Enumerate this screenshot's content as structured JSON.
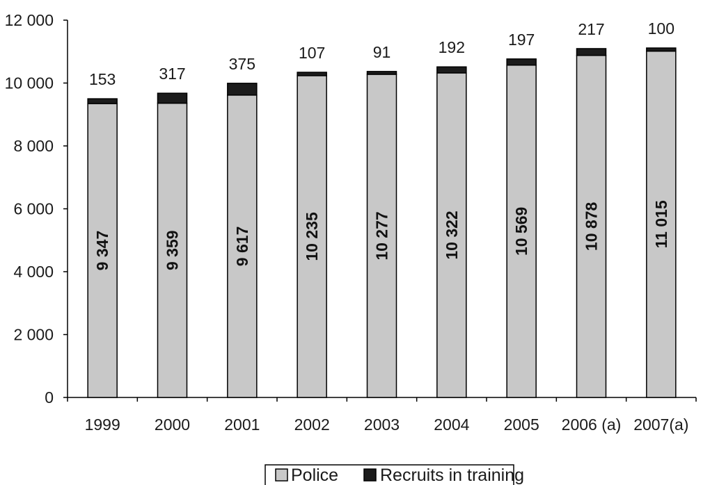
{
  "chart_data": {
    "type": "bar",
    "stacked": true,
    "categories": [
      "1999",
      "2000",
      "2001",
      "2002",
      "2003",
      "2004",
      "2005",
      "2006 (a)",
      "2007(a)"
    ],
    "series": [
      {
        "name": "Police",
        "color": "#c8c8c8",
        "values": [
          9347,
          9359,
          9617,
          10235,
          10277,
          10322,
          10569,
          10878,
          11015
        ]
      },
      {
        "name": "Recruits in training",
        "color": "#1c1c1c",
        "values": [
          153,
          317,
          375,
          107,
          91,
          192,
          197,
          217,
          100
        ]
      }
    ],
    "value_labels": {
      "police": [
        "9 347",
        "9 359",
        "9 617",
        "10 235",
        "10 277",
        "10 322",
        "10 569",
        "10 878",
        "11 015"
      ],
      "recruits": [
        "153",
        "317",
        "375",
        "107",
        "91",
        "192",
        "197",
        "217",
        "100"
      ]
    },
    "ylim": [
      0,
      12000
    ],
    "yticks": [
      0,
      2000,
      4000,
      6000,
      8000,
      10000,
      12000
    ],
    "ytick_labels": [
      "0",
      "2 000",
      "4 000",
      "6 000",
      "8 000",
      "10 000",
      "12 000"
    ],
    "grid": false,
    "legend_position": "bottom-center"
  }
}
